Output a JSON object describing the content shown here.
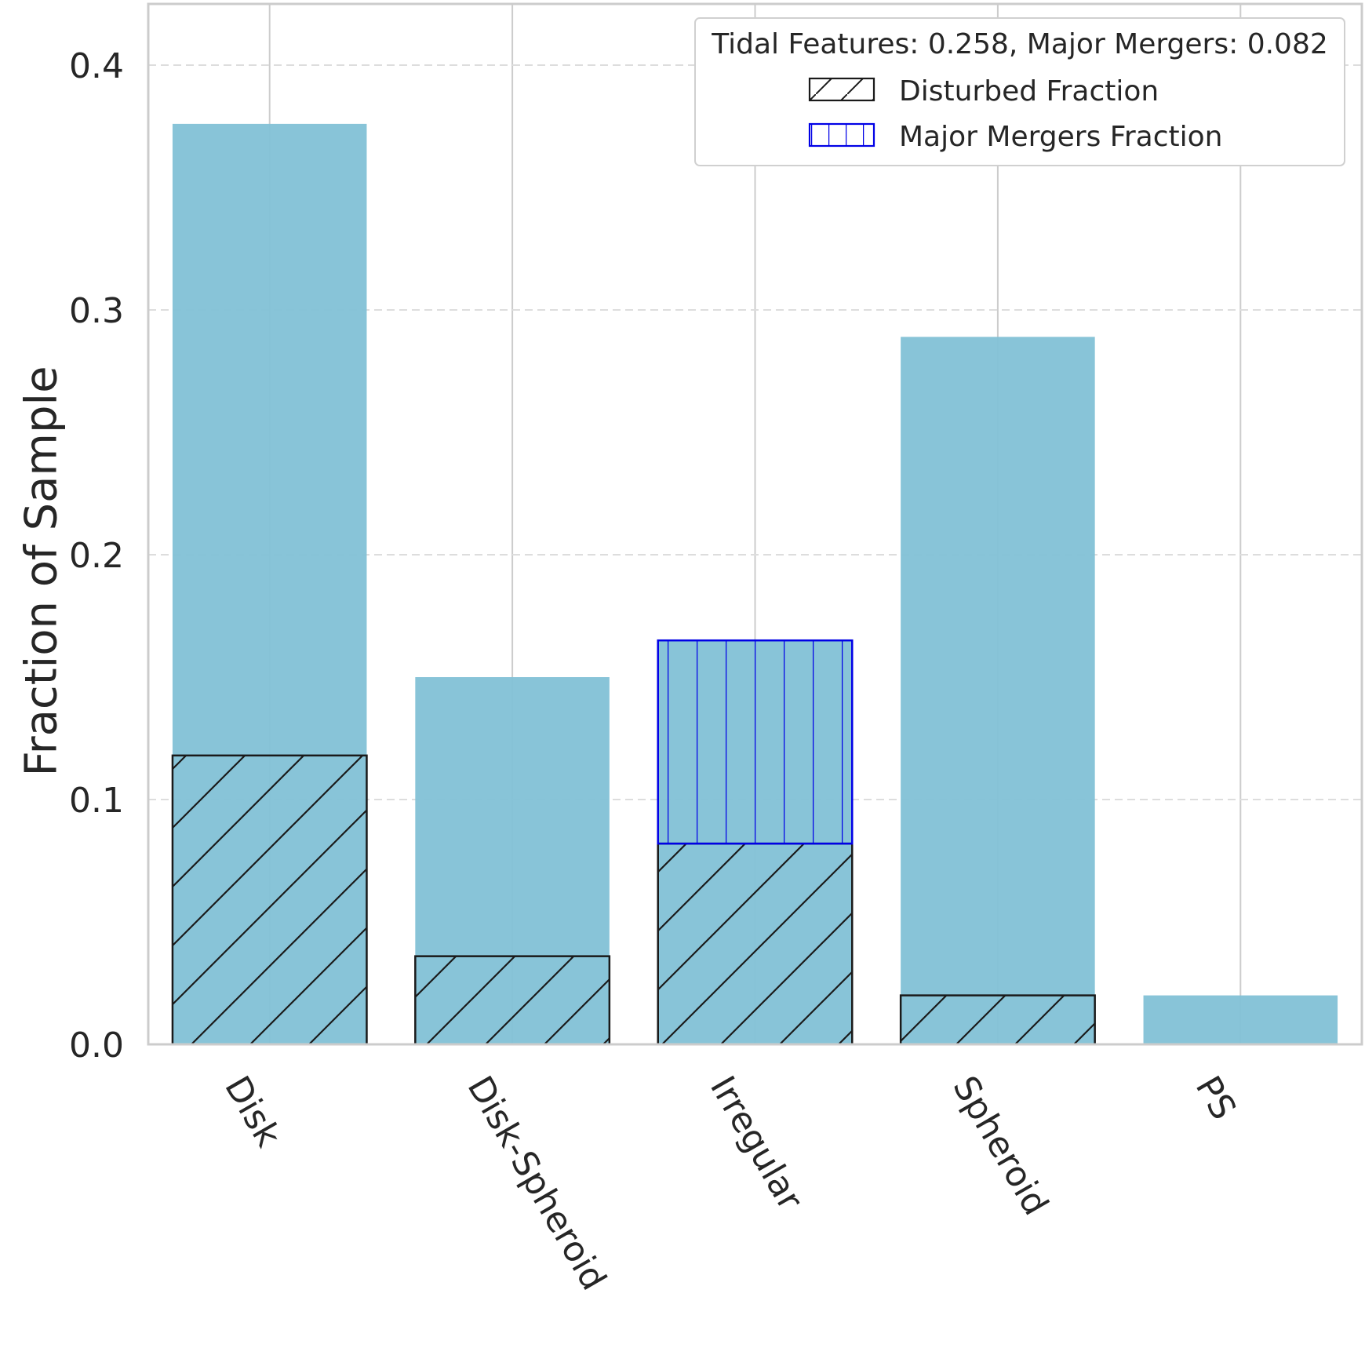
{
  "chart_data": {
    "type": "bar",
    "categories": [
      "Disk",
      "Disk-Spheroid",
      "Irregular",
      "Spheroid",
      "PS"
    ],
    "series": [
      {
        "values": [
          0.376,
          0.15,
          0.165,
          0.289,
          0.02
        ]
      },
      {
        "name": "Disturbed Fraction",
        "values": [
          0.118,
          0.036,
          0.082,
          0.02,
          0.0
        ],
        "pattern": "diagonal-hatch"
      },
      {
        "name": "Major Mergers Fraction",
        "values": [
          0.0,
          0.0,
          0.083,
          0.0,
          0.0
        ],
        "stacked_on": "Disturbed Fraction",
        "pattern": "vertical-hatch"
      }
    ],
    "xlabel": "",
    "ylabel": "Fraction of Sample",
    "ylim": [
      0,
      0.425
    ],
    "yticks": [
      "0.0",
      "0.1",
      "0.2",
      "0.3",
      "0.4"
    ],
    "legend_title": "Tidal Features: 0.258, Major Mergers: 0.082",
    "legend_position": "top-right",
    "grid": true,
    "colors": {
      "bar_fill": "#82c1d6",
      "disturbed_edge": "#1a1a1a",
      "mergers_edge": "#0000e6",
      "grid": "#cccccc"
    }
  }
}
